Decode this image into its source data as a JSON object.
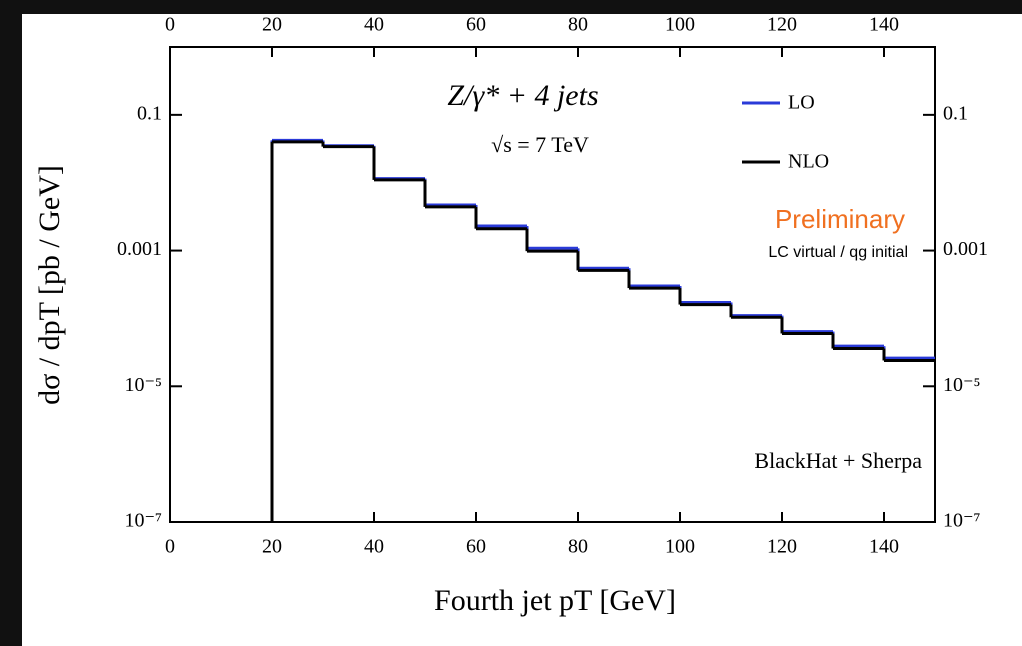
{
  "chart_data": {
    "type": "histogram",
    "title": "Z/γ* + 4 jets",
    "subtitle": "√s  =  7 TeV",
    "annotations": [
      "Preliminary",
      "LC virtual / qg initial",
      "BlackHat + Sherpa"
    ],
    "x_label": "Fourth jet pT  [GeV]",
    "y_label": "dσ / dpT  [pb / GeV]",
    "bins": [
      20,
      30,
      40,
      50,
      60,
      70,
      80,
      90,
      100,
      110,
      120,
      130,
      140,
      150
    ],
    "series": [
      {
        "name": "LO",
        "color": "#2a3ad8",
        "values": [
          0.042,
          0.035,
          0.0115,
          0.0047,
          0.0023,
          0.00108,
          0.00055,
          0.0003,
          0.000172,
          0.00011,
          6.4e-05,
          3.9e-05,
          2.6e-05
        ]
      },
      {
        "name": "NLO",
        "color": "#000000",
        "values": [
          0.04,
          0.034,
          0.011,
          0.0044,
          0.0021,
          0.00098,
          0.00051,
          0.00028,
          0.00016,
          0.000104,
          6e-05,
          3.6e-05,
          2.4e-05
        ]
      }
    ],
    "xlim": [
      0,
      150
    ],
    "xticks": [
      0,
      20,
      40,
      60,
      80,
      100,
      120,
      140
    ],
    "ylim": [
      1e-07,
      1
    ],
    "log_y": true,
    "yticks": [
      {
        "value": 1e-07,
        "label": "10⁻⁷"
      },
      {
        "value": 1e-05,
        "label": "10⁻⁵"
      },
      {
        "value": 0.001,
        "label": "0.001"
      },
      {
        "value": 0.1,
        "label": "0.1"
      }
    ],
    "legend": "upper right"
  }
}
